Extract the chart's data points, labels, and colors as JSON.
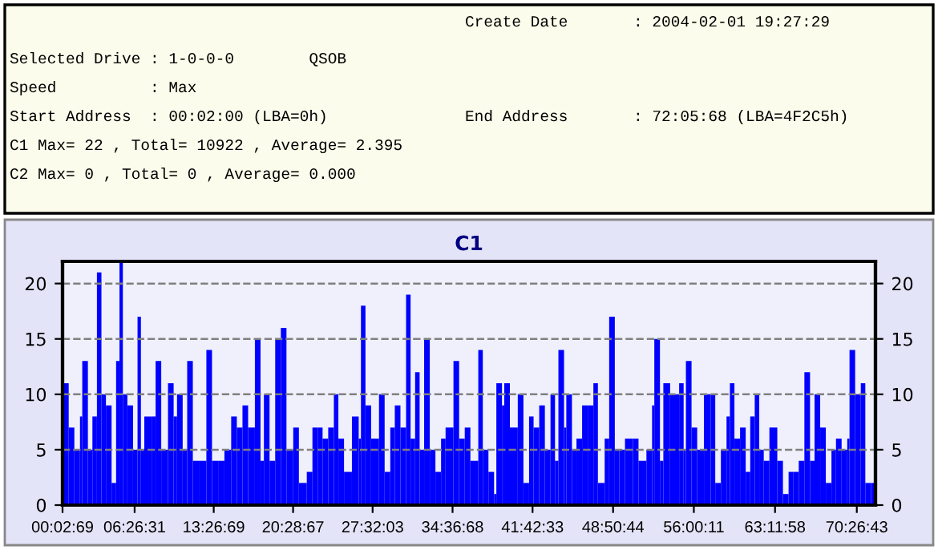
{
  "chart_data": {
    "type": "bar",
    "title": "C1",
    "annotations": [
      "Create Date       : 2004-02-01 19:27:29",
      "Selected Drive : 1-0-0-0        QSOB",
      "Speed          : Max",
      "Start Address  : 00:02:00 (LBA=0h)",
      "End Address       : 72:05:68 (LBA=4F2C5h)",
      "C1 Max= 22 , Total= 10922 , Average= 2.395",
      "C2 Max= 0 , Total= 0 , Average= 0.000"
    ],
    "x": [
      0.1,
      0.6,
      1.1,
      1.6,
      1.8,
      2.3,
      2.7,
      3.1,
      3.5,
      3.9,
      4.4,
      4.8,
      5.1,
      5.4,
      5.8,
      6.3,
      6.7,
      7.0,
      7.3,
      8.0,
      8.3,
      8.8,
      9.4,
      9.9,
      10.2,
      10.7,
      11.1,
      11.6,
      12.2,
      12.8,
      13.3,
      13.9,
      14.4,
      15.0,
      15.5,
      16.0,
      16.5,
      17.1,
      17.6,
      17.9,
      18.4,
      18.9,
      19.4,
      19.9,
      20.5,
      21.0,
      21.7,
      22.2,
      22.7,
      23.1,
      23.6,
      24.1,
      24.5,
      25.0,
      25.7,
      26.3,
      26.5,
      26.9,
      27.4,
      28.1,
      28.6,
      29.1,
      29.5,
      30.0,
      30.5,
      30.9,
      31.3,
      31.7,
      32.1,
      32.6,
      33.1,
      33.6,
      34.0,
      34.7,
      35.2,
      35.7,
      36.2,
      36.9,
      37.3,
      37.8,
      38.3,
      38.5,
      39.0,
      39.2,
      39.7,
      40.4,
      40.9,
      41.4,
      41.8,
      42.3,
      42.8,
      43.3,
      43.7,
      44.0,
      44.5,
      44.7,
      45.2,
      45.6,
      46.1,
      46.6,
      47.1,
      47.5,
      48.1,
      48.5,
      49.0,
      49.4,
      49.9,
      50.6,
      51.1,
      51.8,
      52.3,
      52.5,
      53.0,
      53.3,
      53.9,
      54.7,
      55.1,
      55.3,
      55.8,
      56.3,
      56.9,
      57.5,
      57.9,
      58.4,
      58.9,
      59.2,
      59.6,
      60.1,
      60.6,
      61.0,
      61.4,
      61.8,
      62.2,
      62.7,
      63.4,
      63.9,
      64.4,
      64.8,
      65.3,
      65.8,
      66.3,
      66.7,
      67.2,
      67.7,
      68.2,
      68.6,
      69.1,
      69.6,
      69.8,
      70.3,
      70.8,
      71.2,
      71.7
    ],
    "values": [
      11,
      7,
      5,
      8,
      13,
      5,
      8,
      21,
      10,
      9,
      2,
      13,
      22,
      10,
      9,
      5,
      17,
      5,
      8,
      8,
      13,
      5,
      11,
      8,
      10,
      5,
      13,
      4,
      4,
      14,
      4,
      4,
      5,
      8,
      7,
      9,
      7,
      15,
      4,
      10,
      4,
      15,
      16,
      5,
      7,
      2,
      3,
      7,
      7,
      6,
      7,
      10,
      6,
      3,
      8,
      6,
      18,
      9,
      6,
      10,
      3,
      7,
      9,
      7,
      19,
      6,
      12,
      5,
      15,
      5,
      3,
      6,
      7,
      13,
      6,
      7,
      4,
      14,
      5,
      3,
      1,
      11,
      9,
      11,
      7,
      10,
      2,
      8,
      7,
      9,
      5,
      10,
      4,
      14,
      7,
      10,
      5,
      6,
      9,
      9,
      11,
      2,
      6,
      17,
      5,
      5,
      6,
      6,
      4,
      5,
      9,
      15,
      4,
      11,
      10,
      11,
      5,
      13,
      7,
      5,
      10,
      10,
      2,
      5,
      8,
      11,
      6,
      7,
      3,
      8,
      10,
      5,
      4,
      7,
      4,
      1,
      3,
      3,
      4,
      12,
      4,
      10,
      7,
      2,
      5,
      6,
      5,
      6,
      14,
      10,
      11,
      2,
      2
    ],
    "color": "#0000ff",
    "xlim": [
      0.0525,
      72.1
    ],
    "xticks": [
      {
        "value": 0.0525,
        "label": "00:02:69"
      },
      {
        "value": 6.4419,
        "label": "06:26:31"
      },
      {
        "value": 13.4525,
        "label": "13:26:69"
      },
      {
        "value": 20.4853,
        "label": "20:28:67"
      },
      {
        "value": 27.5342,
        "label": "27:32:03"
      },
      {
        "value": 34.6189,
        "label": "34:36:68"
      },
      {
        "value": 41.7092,
        "label": "41:42:33"
      },
      {
        "value": 48.8456,
        "label": "48:50:44"
      },
      {
        "value": 56.0031,
        "label": "56:00:11"
      },
      {
        "value": 63.1994,
        "label": "63:11:58"
      },
      {
        "value": 70.4453,
        "label": "70:26:43"
      }
    ],
    "ylim": [
      0,
      22
    ],
    "yticks": [
      0,
      5,
      10,
      15,
      20
    ],
    "y2lim": [
      0,
      22
    ],
    "y2ticks": [
      0,
      5,
      10,
      15,
      20
    ],
    "grid": "y",
    "line_style": "dashed"
  }
}
